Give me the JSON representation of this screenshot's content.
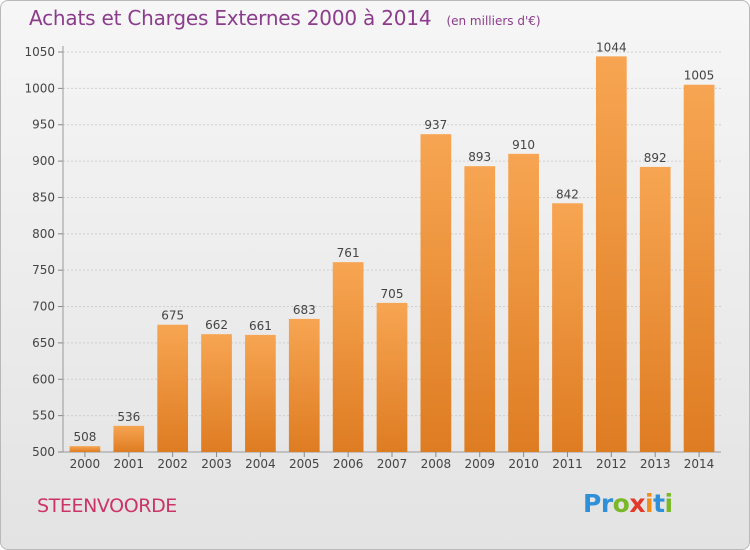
{
  "header": {
    "title": "Achats et Charges Externes 2000 à 2014",
    "unit": "(en milliers d'€)"
  },
  "footer": {
    "commune": "STEENVOORDE",
    "logo_letters": [
      {
        "char": "P",
        "color": "#2f8fd8"
      },
      {
        "char": "r",
        "color": "#2f8fd8"
      },
      {
        "char": "o",
        "color": "#7ab828"
      },
      {
        "char": "x",
        "color": "#e23a2a"
      },
      {
        "char": "i",
        "color": "#f28c1a"
      },
      {
        "char": "t",
        "color": "#2f8fd8"
      },
      {
        "char": "i",
        "color": "#7ab828"
      }
    ]
  },
  "chart_data": {
    "type": "bar",
    "title": "Achats et Charges Externes 2000 à 2014",
    "subtitle": "(en milliers d'€)",
    "categories": [
      "2000",
      "2001",
      "2002",
      "2003",
      "2004",
      "2005",
      "2006",
      "2007",
      "2008",
      "2009",
      "2010",
      "2011",
      "2012",
      "2013",
      "2014"
    ],
    "values": [
      508,
      536,
      675,
      662,
      661,
      683,
      761,
      705,
      937,
      893,
      910,
      842,
      1044,
      892,
      1005
    ],
    "ylim": [
      500,
      1050
    ],
    "yticks": [
      500,
      550,
      600,
      650,
      700,
      750,
      800,
      850,
      900,
      950,
      1000,
      1050
    ],
    "grid": true,
    "bar_color_top": "#f7a552",
    "bar_color_bottom": "#de7c22"
  }
}
